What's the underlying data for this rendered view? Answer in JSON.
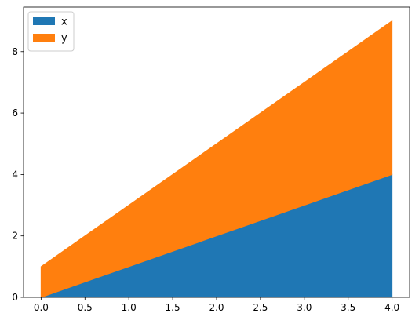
{
  "chart_data": {
    "type": "area",
    "stacked": true,
    "x": [
      0,
      4
    ],
    "series": [
      {
        "name": "x",
        "values": [
          0,
          4
        ],
        "color": "#1f77b4"
      },
      {
        "name": "y",
        "values": [
          1,
          5
        ],
        "color": "#ff7f0e"
      }
    ],
    "xlim": [
      -0.2,
      4.2
    ],
    "ylim": [
      0,
      9.45
    ],
    "xticks": [
      0.0,
      0.5,
      1.0,
      1.5,
      2.0,
      2.5,
      3.0,
      3.5,
      4.0
    ],
    "xtick_labels": [
      "0.0",
      "0.5",
      "1.0",
      "1.5",
      "2.0",
      "2.5",
      "3.0",
      "3.5",
      "4.0"
    ],
    "yticks": [
      0,
      2,
      4,
      6,
      8
    ],
    "ytick_labels": [
      "0",
      "2",
      "4",
      "6",
      "8"
    ],
    "title": "",
    "xlabel": "",
    "ylabel": "",
    "grid": false,
    "legend_position": "top-left"
  }
}
